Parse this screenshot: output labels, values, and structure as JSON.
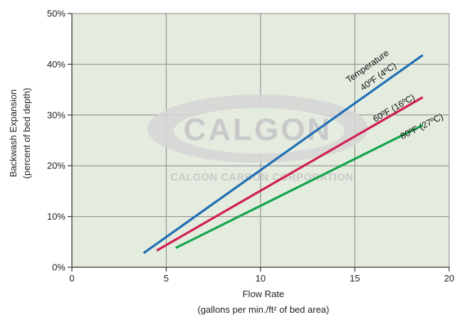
{
  "chart_data": {
    "type": "line",
    "xlabel": "Flow Rate",
    "xlabel_line2": "(gallons per min./ft² of bed area)",
    "ylabel": "Backwash Expansion",
    "ylabel_line2": "(percent of bed depth)",
    "xlim": [
      0,
      20
    ],
    "ylim": [
      0,
      50
    ],
    "x_ticks": [
      0,
      5,
      10,
      15,
      20
    ],
    "y_ticks": [
      0,
      10,
      20,
      30,
      40,
      50
    ],
    "x_tick_labels": [
      "0",
      "5",
      "10",
      "15",
      "20"
    ],
    "y_tick_labels": [
      "0%",
      "10%",
      "20%",
      "30%",
      "40%",
      "50%"
    ],
    "grid": true,
    "series": [
      {
        "name": "Temperature 40ºF (4ºC)",
        "label_line1": "Temperature",
        "label_line2": "40ºF (4ºC)",
        "color": "#1f6fb5",
        "x": [
          3.8,
          18.6
        ],
        "y": [
          2.8,
          41.8
        ]
      },
      {
        "name": "60ºF (16ºC)",
        "label_line1": "60ºF (16ºC)",
        "color": "#d0204e",
        "x": [
          4.5,
          18.6
        ],
        "y": [
          3.3,
          33.5
        ]
      },
      {
        "name": "80ºF (27ºC)",
        "label_line1": "80ºF (27ºC)",
        "color": "#14a54b",
        "x": [
          5.5,
          18.6
        ],
        "y": [
          3.8,
          28.0
        ]
      }
    ]
  },
  "watermark": {
    "logo_text": "CALGON",
    "company_text": "CALGON CARBON CORPORATION"
  },
  "colors": {
    "plot_background": "#e4ebdf",
    "grid": "#8a8a8a",
    "axis": "#333333"
  }
}
